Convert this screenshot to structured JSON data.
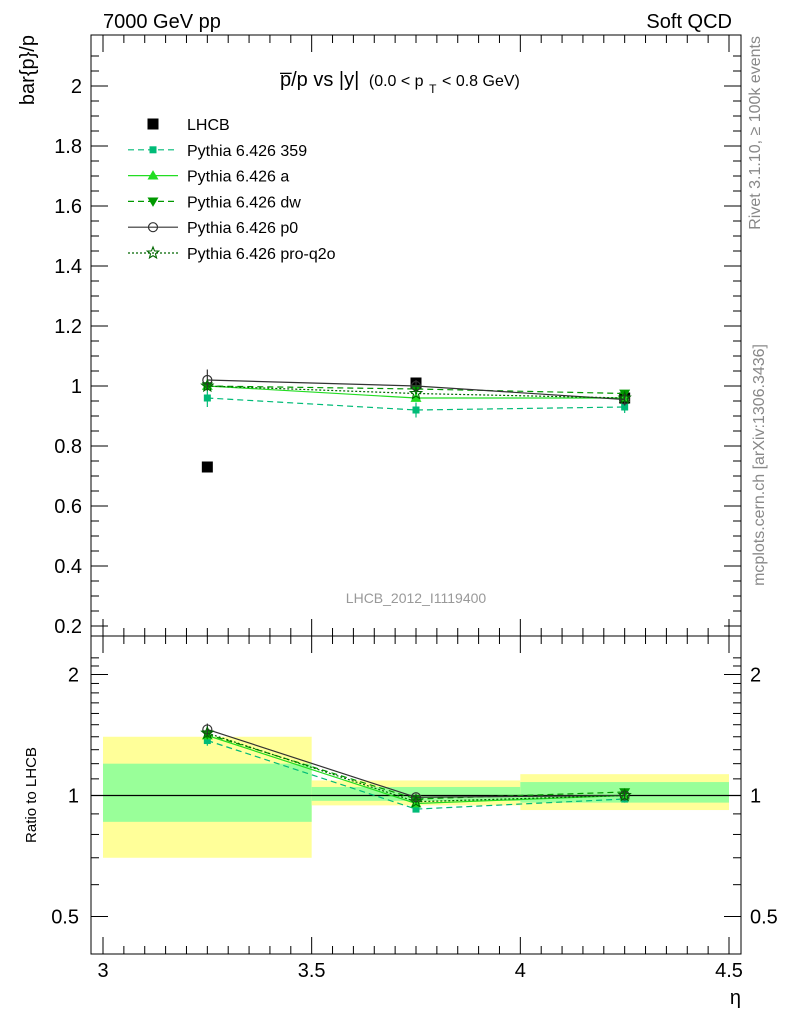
{
  "header": {
    "left": "7000 GeV pp",
    "right": "Soft QCD"
  },
  "side_labels": {
    "rivet": "Rivet 3.1.10, ≥ 100k events",
    "mcplots": "mcplots.cern.ch [arXiv:1306.3436]"
  },
  "title": {
    "main": "p̅/p vs |y|",
    "cut_prefix": "(0.0 < p",
    "cut_sub": "T",
    "cut_suffix": " < 0.8 GeV)"
  },
  "watermark": "LHCB_2012_I1119400",
  "colors": {
    "lhcb": "#000000",
    "p359": "#00bb77",
    "pa": "#22dd22",
    "pdw": "#009900",
    "pp0": "#333333",
    "pq2o": "#006600",
    "band_yellow": "#ffff99",
    "band_green": "#99ff99"
  },
  "chart_data": [
    {
      "type": "scatter",
      "title": "p̅/p vs |y| (0.0 < pT < 0.8 GeV)",
      "xlabel": "η",
      "ylabel": "bar{p}/p",
      "xlim": [
        3.0,
        4.5
      ],
      "ylim": [
        0.18,
        2.17
      ],
      "yticks": [
        0.2,
        0.4,
        0.6,
        0.8,
        1,
        1.2,
        1.4,
        1.6,
        1.8,
        2
      ],
      "ytick_labels": [
        "0.2",
        "0.4",
        "0.6",
        "0.8",
        "1",
        "1.2",
        "1.4",
        "1.6",
        "1.8",
        "2"
      ],
      "x": [
        3.25,
        3.75,
        4.25
      ],
      "series": [
        {
          "id": "lhcb",
          "name": "LHCB",
          "values": [
            0.73,
            1.01,
            0.96
          ],
          "style": "data"
        },
        {
          "id": "p359",
          "name": "Pythia 6.426 359",
          "values": [
            0.96,
            0.92,
            0.93
          ],
          "errors": [
            0.03,
            0.025,
            0.02
          ],
          "style": "dashed",
          "marker": "square"
        },
        {
          "id": "pa",
          "name": "Pythia 6.426 a",
          "values": [
            1.0,
            0.96,
            0.96
          ],
          "style": "solid",
          "marker": "triangle-up"
        },
        {
          "id": "pdw",
          "name": "Pythia 6.426 dw",
          "values": [
            1.0,
            0.99,
            0.975
          ],
          "style": "dashed",
          "marker": "triangle-down"
        },
        {
          "id": "pp0",
          "name": "Pythia 6.426 p0",
          "values": [
            1.02,
            1.0,
            0.955
          ],
          "errors": [
            0.035,
            0.02,
            0.02
          ],
          "style": "solid",
          "marker": "circle"
        },
        {
          "id": "pq2o",
          "name": "Pythia 6.426 pro-q2o",
          "values": [
            1.0,
            0.975,
            0.96
          ],
          "style": "dotted",
          "marker": "star"
        }
      ]
    },
    {
      "type": "scatter",
      "title": "Ratio to LHCB",
      "xlabel": "η",
      "ylabel": "Ratio to LHCB",
      "xlim": [
        3.0,
        4.5
      ],
      "ylim": [
        0.4,
        2.3
      ],
      "yscale": "log",
      "xticks": [
        3,
        3.5,
        4,
        4.5
      ],
      "xtick_labels": [
        "3",
        "3.5",
        "4",
        "4.5"
      ],
      "yticks": [
        0.5,
        1,
        2
      ],
      "ytick_labels": [
        "0.5",
        "1",
        "2"
      ],
      "x": [
        3.25,
        3.75,
        4.25
      ],
      "bands": [
        {
          "x0": 3.0,
          "x1": 3.5,
          "yellow": [
            0.7,
            1.4
          ],
          "green": [
            0.86,
            1.2
          ]
        },
        {
          "x0": 3.5,
          "x1": 4.0,
          "yellow": [
            0.945,
            1.09
          ],
          "green": [
            0.97,
            1.05
          ]
        },
        {
          "x0": 4.0,
          "x1": 4.5,
          "yellow": [
            0.92,
            1.13
          ],
          "green": [
            0.96,
            1.08
          ]
        }
      ],
      "series": [
        {
          "id": "p359",
          "name": "Pythia 6.426 359",
          "values": [
            1.37,
            0.925,
            0.98
          ],
          "errors": [
            0.04,
            0.015,
            0.02
          ]
        },
        {
          "id": "pa",
          "name": "Pythia 6.426 a",
          "values": [
            1.41,
            0.955,
            1.0
          ]
        },
        {
          "id": "pdw",
          "name": "Pythia 6.426 dw",
          "values": [
            1.42,
            0.98,
            1.02
          ]
        },
        {
          "id": "pp0",
          "name": "Pythia 6.426 p0",
          "values": [
            1.46,
            0.99,
            1.0
          ],
          "errors": [
            0.05,
            0.02,
            0.02
          ]
        },
        {
          "id": "pq2o",
          "name": "Pythia 6.426 pro-q2o",
          "values": [
            1.43,
            0.965,
            1.0
          ]
        }
      ]
    }
  ]
}
